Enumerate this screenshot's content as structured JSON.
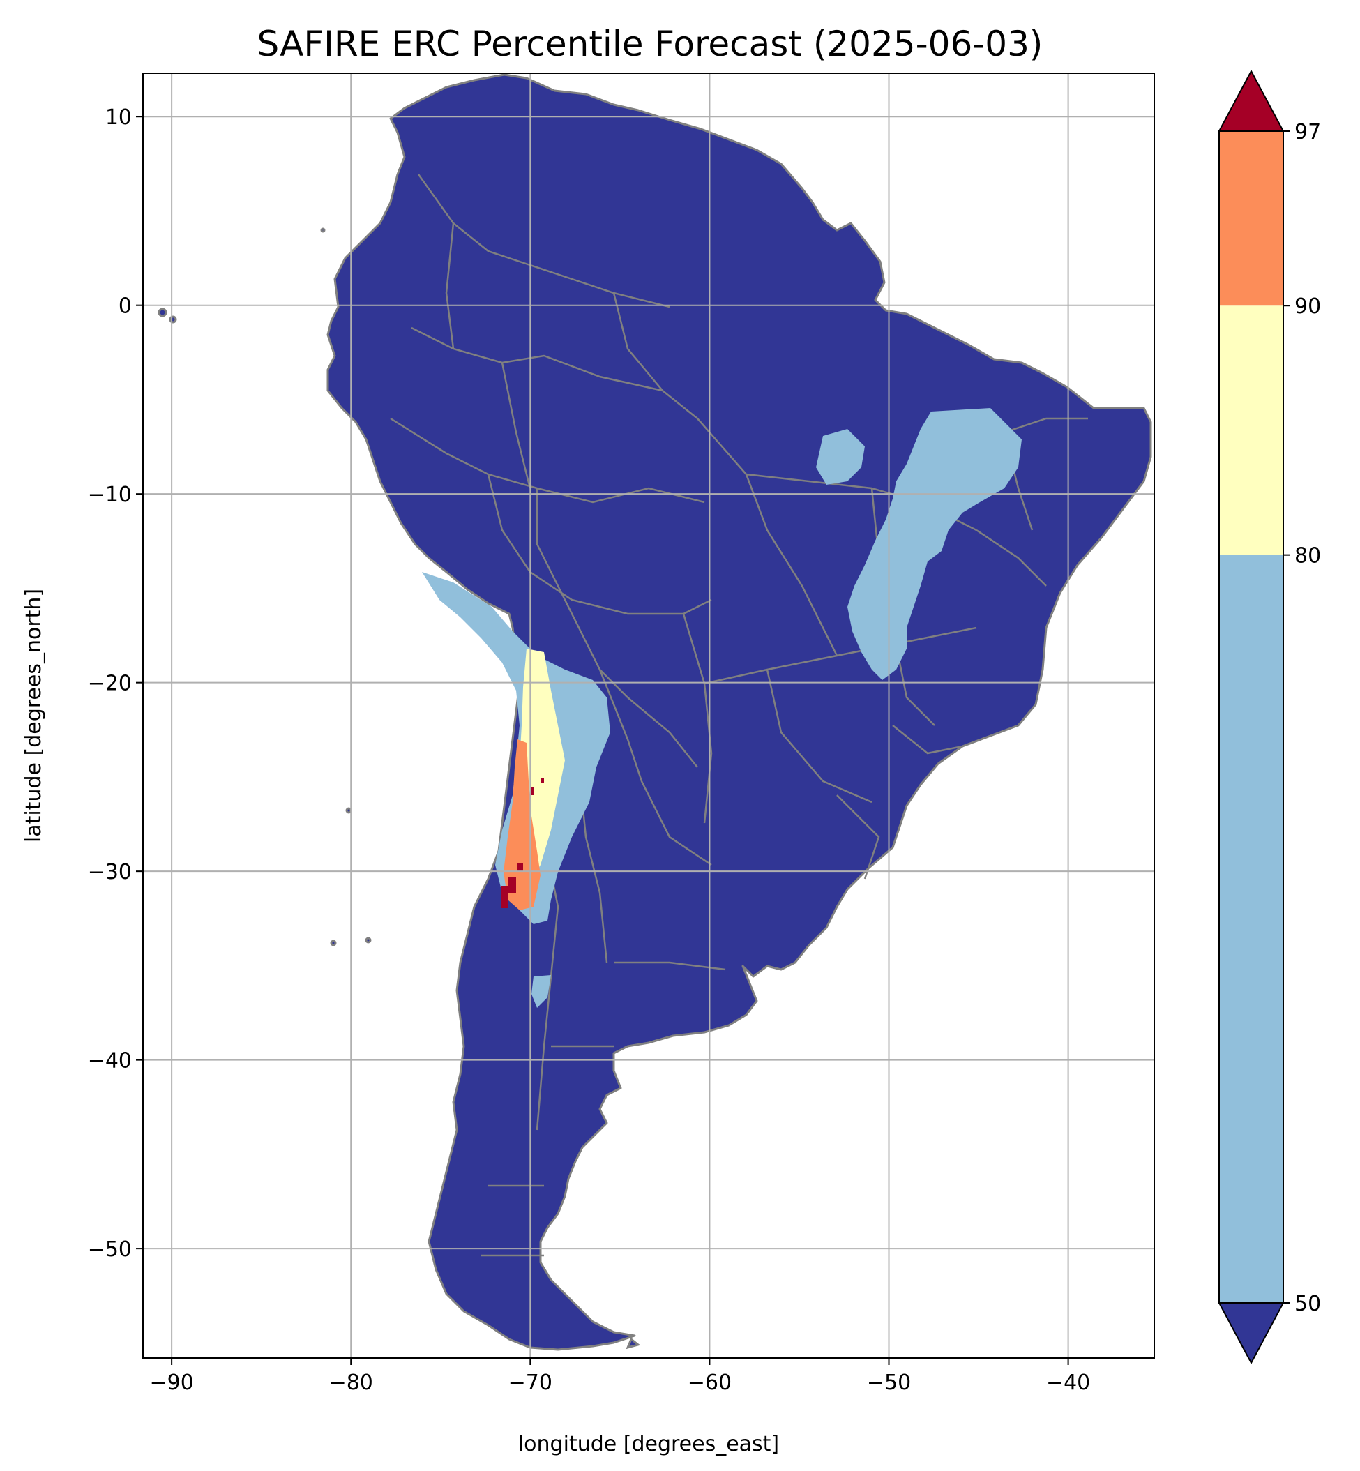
{
  "title": "SAFIRE ERC Percentile Forecast (2025-06-03)",
  "chart_data": {
    "type": "heatmap",
    "title": "SAFIRE ERC Percentile Forecast (2025-06-03)",
    "xlabel": "longitude [degrees_east]",
    "ylabel": "latitude [degrees_north]",
    "xlim": [
      -91.6,
      -35.2
    ],
    "ylim": [
      -55.8,
      12.3
    ],
    "x_ticks": [
      -90,
      -80,
      -70,
      -60,
      -50,
      -40
    ],
    "x_tick_labels": [
      "−90",
      "−80",
      "−70",
      "−60",
      "−50",
      "−40"
    ],
    "y_ticks": [
      10,
      0,
      -10,
      -20,
      -30,
      -40,
      -50
    ],
    "y_tick_labels": [
      "10",
      "0",
      "−10",
      "−20",
      "−30",
      "−40",
      "−50"
    ],
    "grid": true,
    "colorbar": {
      "boundaries": [
        50,
        80,
        90,
        97
      ],
      "tick_labels": [
        "50",
        "80",
        "90",
        "97"
      ],
      "extend": "both",
      "colors": {
        "below_50": "#313695",
        "50_80": "#91bfdb",
        "80_90": "#ffffbf",
        "90_97": "#fc8d59",
        "above_97": "#a50026"
      },
      "placement": "right"
    },
    "regions": [
      {
        "name": "eastern-brazil-interior",
        "category": "50_80",
        "lon_range": [
          -53,
          -42
        ],
        "lat_range": [
          -19,
          -5.5
        ]
      },
      {
        "name": "chile-argentina-andes",
        "category": "50_80",
        "lon_range": [
          -72,
          -65
        ],
        "lat_range": [
          -33,
          -17
        ]
      },
      {
        "name": "atacama-coastal-band",
        "category": "80_90",
        "lon_range": [
          -72,
          -67.5
        ],
        "lat_range": [
          -31,
          -18
        ]
      },
      {
        "name": "central-chile",
        "category": "90_97",
        "lon_range": [
          -72,
          -69.5
        ],
        "lat_range": [
          -32,
          -23
        ]
      },
      {
        "name": "central-chile-extreme",
        "category": "above_97",
        "lon_range": [
          -71.7,
          -70.3
        ],
        "lat_range": [
          -32,
          -26
        ]
      }
    ]
  },
  "colors": {
    "land_base": "#313695",
    "border": "#808080",
    "grid": "#b0b0b0"
  }
}
